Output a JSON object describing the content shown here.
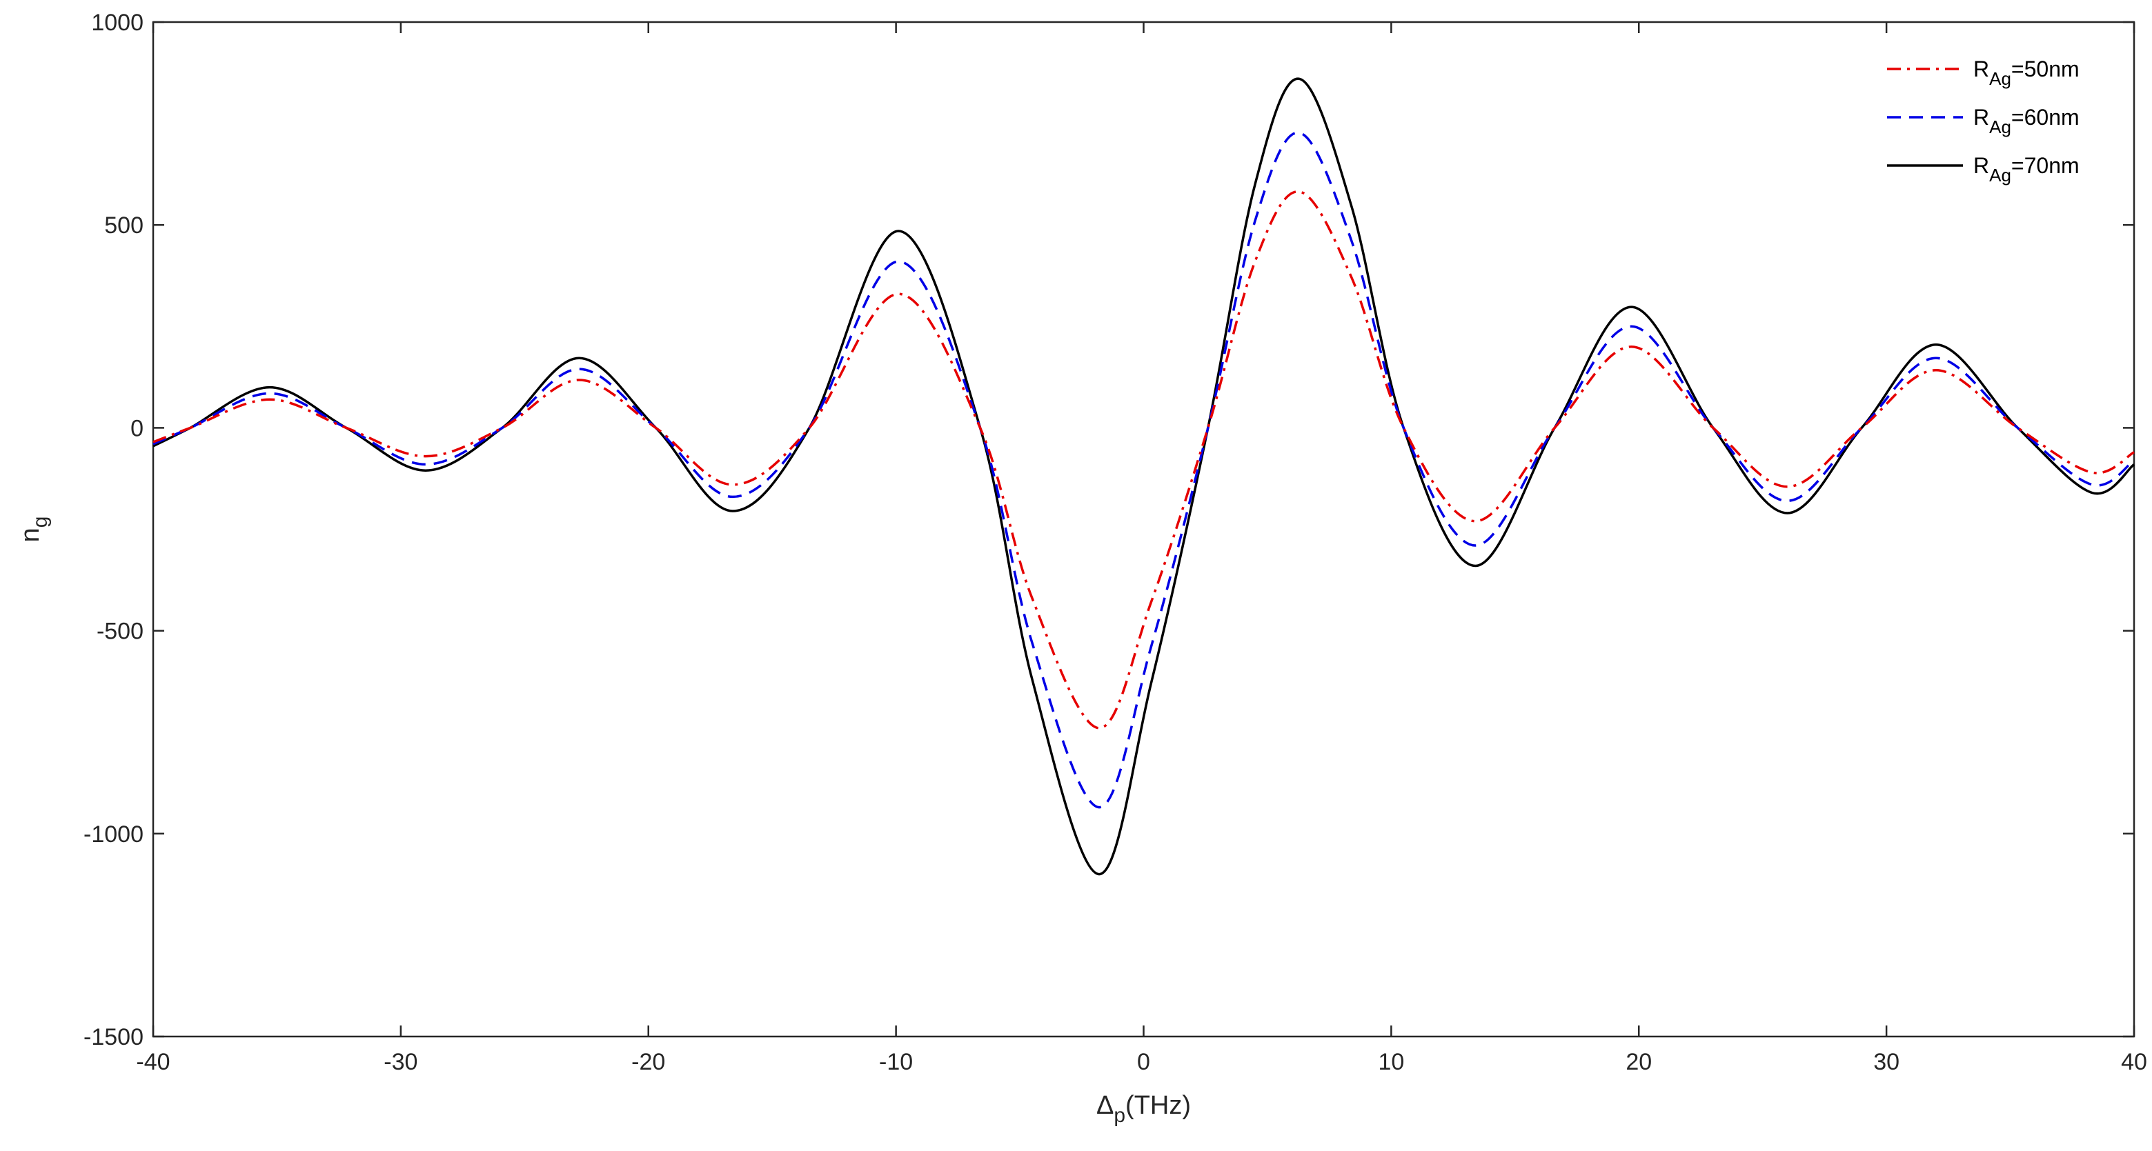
{
  "chart_data": {
    "type": "line",
    "xlabel": {
      "base": "Δ",
      "sub": "p",
      "suffix": "(THz)"
    },
    "ylabel": {
      "base": "n",
      "sub": "g"
    },
    "xlim": [
      -40,
      40
    ],
    "ylim": [
      -1500,
      1000
    ],
    "xticks": [
      -40,
      -30,
      -20,
      -10,
      0,
      10,
      20,
      30,
      40
    ],
    "yticks": [
      -1500,
      -1000,
      -500,
      0,
      500,
      1000
    ],
    "xtick_labels": [
      "-40",
      "-30",
      "-20",
      "-10",
      "0",
      "10",
      "20",
      "30",
      "40"
    ],
    "ytick_labels": [
      "-1500",
      "-1000",
      "-500",
      "0",
      "500",
      "1000"
    ],
    "grid": false,
    "legend_position": "top-right",
    "series": [
      {
        "legend_base": "R",
        "legend_sub": "Ag",
        "legend_suffix": "=50nm",
        "color": "#e60000",
        "style": "dash-dot",
        "x": [
          -40,
          -38.5,
          -35.3,
          -32.2,
          -29,
          -25.9,
          -22.8,
          -19.7,
          -16.6,
          -13.5,
          -9.9,
          -6.6,
          -4.5,
          -1.8,
          0.3,
          2.6,
          4.5,
          6.3,
          8.4,
          10.5,
          13.4,
          16.6,
          19.7,
          23,
          26,
          29,
          32,
          35.3,
          38.3,
          40
        ],
        "y": [
          -35,
          0,
          70,
          0,
          -70,
          0,
          118,
          0,
          -140,
          0,
          330,
          0,
          -420,
          -740,
          -430,
          0,
          410,
          582,
          370,
          0,
          -230,
          0,
          200,
          0,
          -145,
          0,
          142,
          0,
          -110,
          -60
        ]
      },
      {
        "legend_base": "R",
        "legend_sub": "Ag",
        "legend_suffix": "=60nm",
        "color": "#0000e6",
        "style": "dashed",
        "x": [
          -40,
          -38.5,
          -35.3,
          -32.2,
          -29,
          -25.9,
          -22.8,
          -19.7,
          -16.6,
          -13.5,
          -9.9,
          -6.6,
          -4.5,
          -1.8,
          0.3,
          2.6,
          4.5,
          6.3,
          8.4,
          10.5,
          13.4,
          16.6,
          19.7,
          23,
          26,
          29,
          32,
          35.3,
          38.3,
          40
        ],
        "y": [
          -40,
          0,
          85,
          0,
          -90,
          0,
          145,
          0,
          -170,
          0,
          410,
          0,
          -530,
          -935,
          -540,
          0,
          510,
          727,
          460,
          0,
          -290,
          0,
          250,
          0,
          -180,
          0,
          172,
          0,
          -140,
          -80
        ]
      },
      {
        "legend_base": "R",
        "legend_sub": "Ag",
        "legend_suffix": "=70nm",
        "color": "#000000",
        "style": "solid",
        "x": [
          -40,
          -38.5,
          -35.3,
          -32.2,
          -29,
          -25.9,
          -22.8,
          -19.7,
          -16.6,
          -13.5,
          -9.9,
          -6.6,
          -4.5,
          -1.8,
          0.3,
          2.6,
          4.5,
          6.3,
          8.4,
          10.5,
          13.4,
          16.6,
          19.7,
          23,
          26,
          29,
          32,
          35.3,
          38.3,
          40
        ],
        "y": [
          -45,
          0,
          100,
          0,
          -105,
          0,
          172,
          0,
          -205,
          0,
          485,
          0,
          -620,
          -1100,
          -630,
          0,
          600,
          860,
          545,
          0,
          -340,
          0,
          298,
          0,
          -210,
          0,
          205,
          0,
          -160,
          -90
        ]
      }
    ]
  }
}
